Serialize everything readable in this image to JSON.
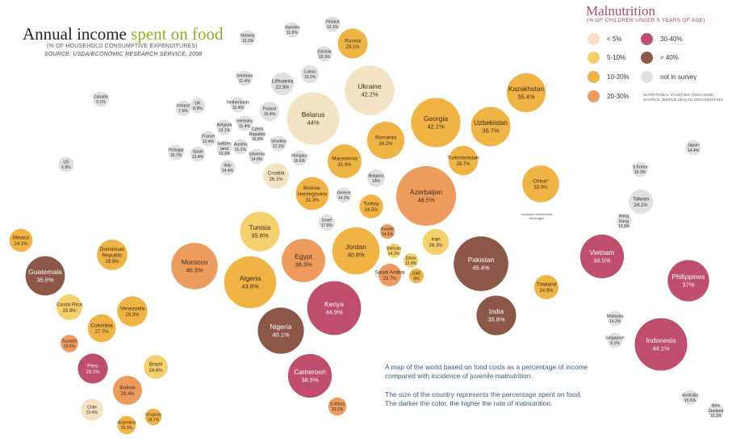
{
  "header": {
    "title_main": "Annual income ",
    "title_accent": "spent on food",
    "subtitle": "(% OF HOUSEHOLD CONSUMPTIVE EXPENDITURES)",
    "source": "SOURCE: USDA/ECONOMIC RESEARCH SERVICE, 2008"
  },
  "legend": {
    "title": "Malnutrition",
    "subtitle": "(% OF CHILDREN UNDER 5 YEARS OF AGE)",
    "items": [
      {
        "label": "< 5%",
        "color": "#f3e3c3"
      },
      {
        "label": "5-10%",
        "color": "#f6d06c"
      },
      {
        "label": "10-20%",
        "color": "#f0b444"
      },
      {
        "label": "20-30%",
        "color": "#ee9b5e"
      },
      {
        "label": "30-40%",
        "color": "#bf4d6c"
      },
      {
        "label": "> 40%",
        "color": "#8c5747"
      },
      {
        "label": "not in survey",
        "color": "#dfe0e2"
      }
    ],
    "note1": "NUTRITIONAL STUNTING (2003–2008)",
    "note2": "SOURCE: WORLD HEALTH ORGANIZATION"
  },
  "description": {
    "line1": "A map of the world based on food costs as a percentage of income",
    "line2": "compared with incidence of juvenile malnutrition.",
    "line3": "The size of the country represents the percentage spent on food.",
    "line4": "The darker the color, the higher the rate of malnutrition."
  },
  "china_note": "*includes nonalcoholic beverages",
  "chart_data": {
    "type": "bubble-map",
    "title": "Annual income spent on food",
    "value_unit": "% of household consumptive expenditures",
    "color_meaning": "Malnutrition (% of children under 5 years of age)",
    "countries": [
      {
        "name": "Finland",
        "value": 12.1,
        "cat": "none"
      },
      {
        "name": "Sweden",
        "value": 11.6,
        "cat": "none"
      },
      {
        "name": "Norway",
        "value": 13.1,
        "cat": "none"
      },
      {
        "name": "Russia",
        "value": 29.1,
        "cat": "10-20"
      },
      {
        "name": "Estonia",
        "value": 15.3,
        "cat": "none"
      },
      {
        "name": "Latvia",
        "value": 19.2,
        "cat": "none"
      },
      {
        "name": "Denmark",
        "value": 11.4,
        "cat": "none"
      },
      {
        "name": "Lithuania",
        "value": 22.9,
        "cat": "none"
      },
      {
        "name": "Ukraine",
        "value": 42.2,
        "cat": "<5"
      },
      {
        "name": "Kazakhstan",
        "value": 35.4,
        "cat": "10-20"
      },
      {
        "name": "Canada",
        "value": 9.1,
        "cat": "none"
      },
      {
        "name": "Ireland",
        "value": 7.5,
        "cat": "none"
      },
      {
        "name": "UK",
        "value": 8.9,
        "cat": "none"
      },
      {
        "name": "Netherlands",
        "value": 11.4,
        "cat": "none"
      },
      {
        "name": "Poland",
        "value": 20.4,
        "cat": "none"
      },
      {
        "name": "Belarus",
        "value": 44,
        "cat": "<5"
      },
      {
        "name": "Germany",
        "value": 11.4,
        "cat": "none"
      },
      {
        "name": "Georgia",
        "value": 42.1,
        "cat": "10-20"
      },
      {
        "name": "Uzbekistan",
        "value": 35.7,
        "cat": "10-20"
      },
      {
        "name": "Belgium",
        "value": 13.1,
        "cat": "none"
      },
      {
        "name": "Czech Republic",
        "value": 15.9,
        "cat": "none"
      },
      {
        "name": "France",
        "value": 13.4,
        "cat": "none"
      },
      {
        "name": "Switzerland",
        "value": 10.3,
        "cat": "none"
      },
      {
        "name": "Austria",
        "value": 11.1,
        "cat": "none"
      },
      {
        "name": "Slovakia",
        "value": 17.2,
        "cat": "none"
      },
      {
        "name": "Romania",
        "value": 34.2,
        "cat": "10-20"
      },
      {
        "name": "Portugal",
        "value": 15.7,
        "cat": "none"
      },
      {
        "name": "Spain",
        "value": 13.4,
        "cat": "none"
      },
      {
        "name": "Slovenia",
        "value": 14.6,
        "cat": "none"
      },
      {
        "name": "Hungary",
        "value": 16.6,
        "cat": "none"
      },
      {
        "name": "Turkmenistan",
        "value": 28.7,
        "cat": "10-20"
      },
      {
        "name": "Japan",
        "value": 14.4,
        "cat": "none"
      },
      {
        "name": "US",
        "value": 6.8,
        "cat": "none"
      },
      {
        "name": "Italy",
        "value": 14.4,
        "cat": "none"
      },
      {
        "name": "Macedonia",
        "value": 31.9,
        "cat": "10-20"
      },
      {
        "name": "Croatia",
        "value": 26.1,
        "cat": "<5"
      },
      {
        "name": "Bulgaria",
        "value": 19,
        "cat": "none"
      },
      {
        "name": "Azerbaijan",
        "value": 48.5,
        "cat": "20-30"
      },
      {
        "name": "S Korea",
        "value": 15.3,
        "cat": "none"
      },
      {
        "name": "China*",
        "value": 33.9,
        "cat": "10-20"
      },
      {
        "name": "Bosnia-Herzegovina",
        "value": 31.3,
        "cat": "10-20"
      },
      {
        "name": "Greece",
        "value": 14.2,
        "cat": "none"
      },
      {
        "name": "Taiwan",
        "value": 24.1,
        "cat": "none"
      },
      {
        "name": "Turkey",
        "value": 24.5,
        "cat": "10-20"
      },
      {
        "name": "Israel",
        "value": 17.8,
        "cat": "none"
      },
      {
        "name": "Hong Kong",
        "value": 12.3,
        "cat": "none"
      },
      {
        "name": "Kuwait",
        "value": 14.6,
        "cat": "20-30"
      },
      {
        "name": "Mexico",
        "value": 24.1,
        "cat": "10-20"
      },
      {
        "name": "Tunisia",
        "value": 35.8,
        "cat": "5-10"
      },
      {
        "name": "Iran",
        "value": 26.3,
        "cat": "5-10"
      },
      {
        "name": "Dominican Republic",
        "value": 29.5,
        "cat": "10-20"
      },
      {
        "name": "Bahrain",
        "value": 14.3,
        "cat": "5-10"
      },
      {
        "name": "Jordan",
        "value": 40.8,
        "cat": "10-20"
      },
      {
        "name": "Egypt",
        "value": 38.3,
        "cat": "20-30"
      },
      {
        "name": "Qatar",
        "value": 12.8,
        "cat": "5-10"
      },
      {
        "name": "Pakistan",
        "value": 45.4,
        "cat": ">40"
      },
      {
        "name": "Vietnam",
        "value": 38.5,
        "cat": "30-40"
      },
      {
        "name": "Morocco",
        "value": 40.3,
        "cat": "20-30"
      },
      {
        "name": "Guatemala",
        "value": 35.6,
        "cat": ">40"
      },
      {
        "name": "Saudi Arabia",
        "value": 23.7,
        "cat": "20-30"
      },
      {
        "name": "UAE",
        "value": 9,
        "cat": "10-20"
      },
      {
        "name": "Algeria",
        "value": 43.8,
        "cat": "10-20"
      },
      {
        "name": "Philippines",
        "value": 37,
        "cat": "30-40"
      },
      {
        "name": "Thailand",
        "value": 24.9,
        "cat": "10-20"
      },
      {
        "name": "Kenya",
        "value": 44.9,
        "cat": "30-40"
      },
      {
        "name": "Costa Rica",
        "value": 25.9,
        "cat": "5-10"
      },
      {
        "name": "Venezuela",
        "value": 29.3,
        "cat": "10-20"
      },
      {
        "name": "India",
        "value": 35.8,
        "cat": ">40"
      },
      {
        "name": "Malaysia",
        "value": 14.2,
        "cat": "none"
      },
      {
        "name": "Colombia",
        "value": 27.7,
        "cat": "10-20"
      },
      {
        "name": "Nigeria",
        "value": 40.1,
        "cat": ">40"
      },
      {
        "name": "Ecuador",
        "value": 19.5,
        "cat": "20-30"
      },
      {
        "name": "Singapore",
        "value": 8.1,
        "cat": "none"
      },
      {
        "name": "Indonesia",
        "value": 44.1,
        "cat": "30-40"
      },
      {
        "name": "Peru",
        "value": 29.1,
        "cat": "30-40"
      },
      {
        "name": "Brazil",
        "value": 24.6,
        "cat": "5-10"
      },
      {
        "name": "Cameroon",
        "value": 38.5,
        "cat": "30-40"
      },
      {
        "name": "Bolivia",
        "value": 28.4,
        "cat": "20-30"
      },
      {
        "name": "Australia",
        "value": 10.6,
        "cat": "none"
      },
      {
        "name": "Chile",
        "value": 23.4,
        "cat": "<5"
      },
      {
        "name": "S Africa",
        "value": 20.1,
        "cat": "20-30"
      },
      {
        "name": "New Zealand",
        "value": 12.1,
        "cat": "none"
      },
      {
        "name": "Uruguay",
        "value": 18.7,
        "cat": "10-20"
      },
      {
        "name": "Argentina",
        "value": 20.3,
        "cat": "10-20"
      }
    ]
  }
}
